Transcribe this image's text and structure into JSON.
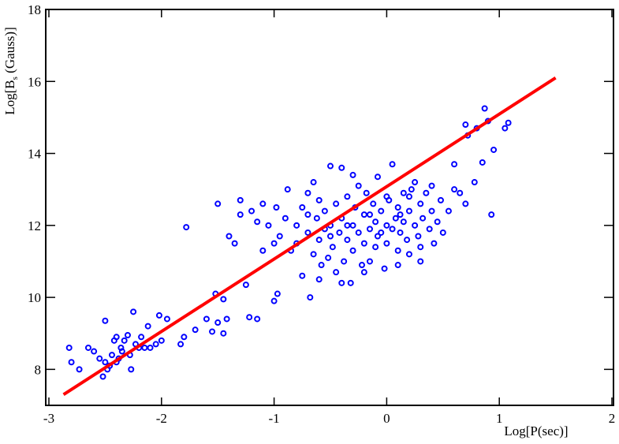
{
  "chart_data": {
    "type": "scatter",
    "xlabel": "Log[P(sec)]",
    "ylabel_parts": [
      "Log[B",
      "s",
      " (Gauss)]"
    ],
    "xlim": [
      -3,
      2
    ],
    "ylim": [
      7,
      18
    ],
    "xticks": [
      -3,
      -2,
      -1,
      0,
      1,
      2
    ],
    "yticks": [
      8,
      10,
      12,
      14,
      16,
      18
    ],
    "series": [
      {
        "type": "scatter",
        "color": "#0000ff",
        "x": [
          -2.82,
          -2.8,
          -2.73,
          -2.65,
          -2.6,
          -2.55,
          -2.52,
          -2.5,
          -2.48,
          -2.46,
          -2.44,
          -2.42,
          -2.4,
          -2.38,
          -2.35,
          -2.33,
          -2.3,
          -2.28,
          -2.27,
          -2.25,
          -2.23,
          -2.2,
          -2.18,
          -2.15,
          -2.12,
          -2.1,
          -2.05,
          -2.02,
          -2.0,
          -1.95,
          -2.4,
          -2.5,
          -2.36,
          -1.83,
          -1.8,
          -1.78,
          -1.7,
          -1.6,
          -1.55,
          -1.52,
          -1.5,
          -1.45,
          -1.45,
          -1.42,
          -1.35,
          -1.4,
          -1.5,
          -1.3,
          -1.25,
          -1.22,
          -1.15,
          -1.2,
          -1.15,
          -1.1,
          -1.05,
          -1.0,
          -0.97,
          -1.0,
          -0.95,
          -0.98,
          -1.3,
          -1.1,
          -0.85,
          -0.8,
          -0.8,
          -0.75,
          -0.75,
          -0.7,
          -0.7,
          -0.68,
          -0.65,
          -0.62,
          -0.6,
          -0.6,
          -0.58,
          -0.55,
          -0.55,
          -0.52,
          -0.5,
          -0.5,
          -0.48,
          -0.45,
          -0.45,
          -0.42,
          -0.4,
          -0.4,
          -0.38,
          -0.35,
          -0.35,
          -0.32,
          -0.3,
          -0.3,
          -0.28,
          -0.25,
          -0.25,
          -0.22,
          -0.2,
          -0.2,
          -0.18,
          -0.15,
          -0.15,
          -0.12,
          -0.1,
          -0.1,
          -0.08,
          -0.05,
          -0.05,
          -0.02,
          0.0,
          0.0,
          0.02,
          0.05,
          0.05,
          0.08,
          0.1,
          0.1,
          0.12,
          0.15,
          0.15,
          0.18,
          0.2,
          0.2,
          0.22,
          0.25,
          0.28,
          0.3,
          0.3,
          0.32,
          0.35,
          0.38,
          0.4,
          0.42,
          0.45,
          0.48,
          0.5,
          -0.6,
          -0.4,
          -0.2,
          -0.7,
          -0.65,
          -0.9,
          -0.88,
          -0.3,
          0.25,
          0.4,
          0.1,
          0.3,
          -0.5,
          -0.15,
          0.0,
          0.2,
          -0.35,
          -0.08,
          0.12,
          0.6,
          0.7,
          0.72,
          0.8,
          0.85,
          0.87,
          0.9,
          0.93,
          0.95,
          1.05,
          1.08,
          0.78,
          0.7,
          0.65,
          0.55,
          0.6
        ],
        "values": [
          8.6,
          8.2,
          8.0,
          8.6,
          8.5,
          8.3,
          7.8,
          9.35,
          8.0,
          8.1,
          8.4,
          8.8,
          8.9,
          8.3,
          8.5,
          8.8,
          8.95,
          8.4,
          8.0,
          9.6,
          8.7,
          8.6,
          8.9,
          8.6,
          9.2,
          8.6,
          8.7,
          9.5,
          8.8,
          9.4,
          8.2,
          8.2,
          8.6,
          8.7,
          8.9,
          11.95,
          9.1,
          9.4,
          9.05,
          10.1,
          9.3,
          9.0,
          9.95,
          9.4,
          11.5,
          11.7,
          12.6,
          12.3,
          10.35,
          9.45,
          9.4,
          12.4,
          12.1,
          11.3,
          12.0,
          9.9,
          10.1,
          11.5,
          11.7,
          12.5,
          12.7,
          12.6,
          11.3,
          12.0,
          11.5,
          10.6,
          12.5,
          11.8,
          12.9,
          10.0,
          11.2,
          12.2,
          11.6,
          12.7,
          10.9,
          11.9,
          12.4,
          11.1,
          13.65,
          12.0,
          11.4,
          10.7,
          12.6,
          11.8,
          13.6,
          12.2,
          11.0,
          11.6,
          12.8,
          10.4,
          12.0,
          11.3,
          12.5,
          11.8,
          13.1,
          10.9,
          12.3,
          11.5,
          12.9,
          11.9,
          11.0,
          12.6,
          12.1,
          11.4,
          13.35,
          11.8,
          12.4,
          10.8,
          12.0,
          11.5,
          12.7,
          11.9,
          13.7,
          12.2,
          11.3,
          12.5,
          11.8,
          12.9,
          12.1,
          11.6,
          12.4,
          11.2,
          13.0,
          12.0,
          11.7,
          12.6,
          11.4,
          12.2,
          12.9,
          11.9,
          12.4,
          11.5,
          12.1,
          12.7,
          11.8,
          10.5,
          10.4,
          10.7,
          12.3,
          13.2,
          12.2,
          13.0,
          13.4,
          13.2,
          13.1,
          10.9,
          11.0,
          11.7,
          12.3,
          12.8,
          12.8,
          12.0,
          11.7,
          12.3,
          13.7,
          14.8,
          14.5,
          14.7,
          13.75,
          15.25,
          14.9,
          12.3,
          14.1,
          14.7,
          14.85,
          13.2,
          12.6,
          12.9,
          12.4,
          13.0
        ]
      },
      {
        "type": "line",
        "color": "#ff0000",
        "x": [
          -2.87,
          1.5
        ],
        "values": [
          7.3,
          16.1
        ]
      }
    ]
  }
}
